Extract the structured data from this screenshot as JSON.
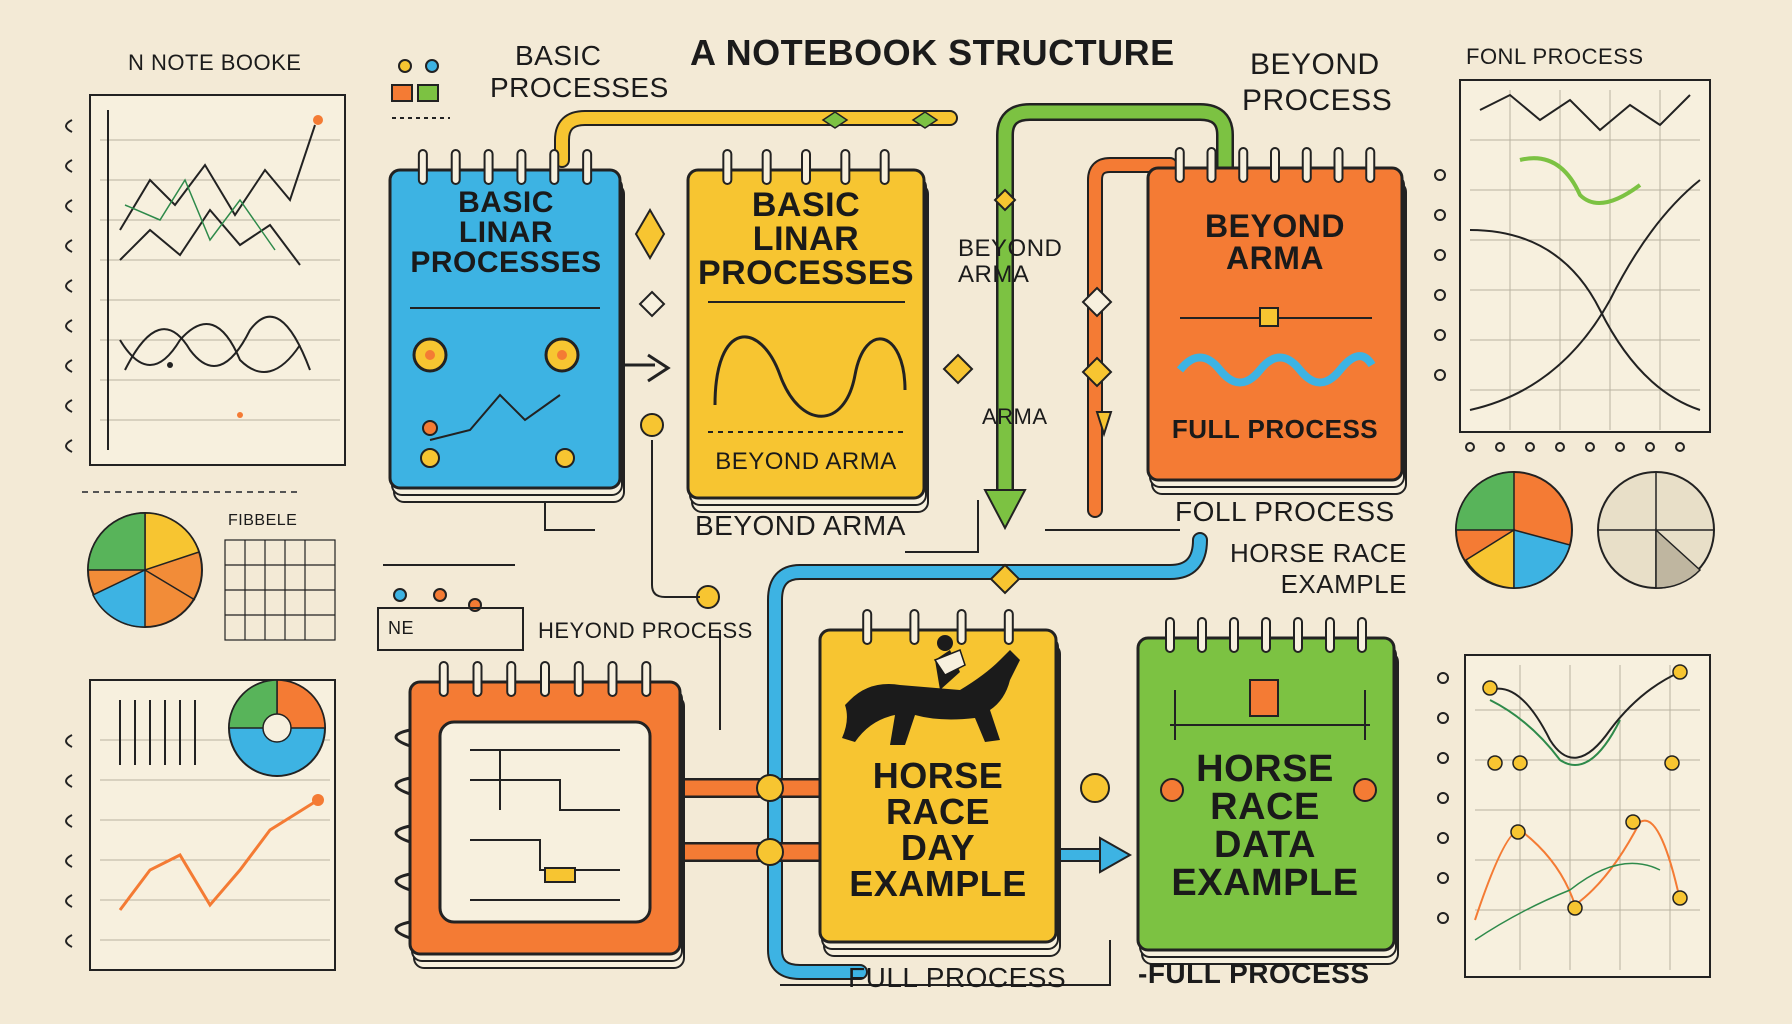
{
  "title": "A NOTEBOOK STRUCTURE",
  "header_left": "BASIC",
  "header_left_sub": "PROCESSES",
  "header_right": "BEYOND",
  "header_right_sub": "PROCESS",
  "left_panel_title": "N NOTE BOOKE",
  "right_panel_title": "FONL PROCESS",
  "notebooks": {
    "blue": {
      "title": "BASIC\nLINAR\nPROCESSES",
      "color": "#3db3e3"
    },
    "yellow_top": {
      "title": "BASIC\nLINAR\nPROCESSES",
      "caption": "BEYOND ARMA",
      "color": "#f7c531"
    },
    "orange_top": {
      "title": "BEYOND\nARMA",
      "caption": "FULL PROCESS",
      "color": "#f47b34"
    },
    "orange_bottom": {
      "color": "#f47b34"
    },
    "yellow_bottom": {
      "title": "HORSE\nRACE\nDAY\nEXAMPLE",
      "color": "#f7c531"
    },
    "green": {
      "title": "HORSE\nRACE\nDATA\nEXAMPLE",
      "color": "#7cc242"
    }
  },
  "labels": {
    "beyond_arma_below": "BEYOND ARMA",
    "beyond_arma_side": "BEYOND\nARMA",
    "arma": "ARMA",
    "foll_process": "FOLL PROCESS",
    "horse_race_example": "HORSE RACE\nEXAMPLE",
    "heyond_process": "HEYOND PROCESS",
    "ne_tag": "NE",
    "fibbele": "FIBBELE",
    "full_process_bottom": "FULL PROCESS",
    "full_process_bottom_right": "-FULL PROCESS"
  },
  "colors": {
    "background": "#f3ead6",
    "blue": "#3db3e3",
    "yellow": "#f7c531",
    "orange": "#f47b34",
    "green": "#7cc242",
    "ink": "#1b1b1b"
  }
}
